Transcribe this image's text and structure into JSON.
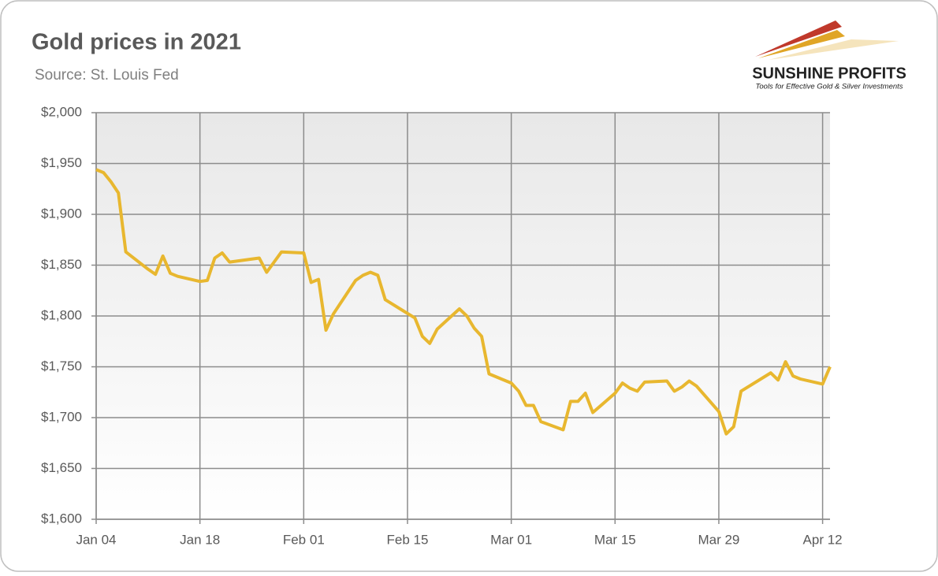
{
  "chart_data": {
    "type": "line",
    "title": "Gold prices in 2021",
    "subtitle": "Source: St. Louis Fed",
    "logo": {
      "name": "SUNSHINE PROFITS",
      "tagline": "Tools for Effective Gold & Silver Investments"
    },
    "x": [
      "Jan 04",
      "Jan 05",
      "Jan 06",
      "Jan 07",
      "Jan 08",
      "Jan 11",
      "Jan 12",
      "Jan 13",
      "Jan 14",
      "Jan 15",
      "Jan 18",
      "Jan 19",
      "Jan 20",
      "Jan 21",
      "Jan 22",
      "Jan 25",
      "Jan 26",
      "Jan 27",
      "Jan 28",
      "Jan 29",
      "Feb 01",
      "Feb 02",
      "Feb 03",
      "Feb 04",
      "Feb 05",
      "Feb 08",
      "Feb 09",
      "Feb 10",
      "Feb 11",
      "Feb 12",
      "Feb 16",
      "Feb 17",
      "Feb 18",
      "Feb 19",
      "Feb 22",
      "Feb 23",
      "Feb 24",
      "Feb 25",
      "Feb 26",
      "Mar 01",
      "Mar 02",
      "Mar 03",
      "Mar 04",
      "Mar 05",
      "Mar 08",
      "Mar 09",
      "Mar 10",
      "Mar 11",
      "Mar 12",
      "Mar 15",
      "Mar 16",
      "Mar 17",
      "Mar 18",
      "Mar 19",
      "Mar 22",
      "Mar 23",
      "Mar 24",
      "Mar 25",
      "Mar 26",
      "Mar 29",
      "Mar 30",
      "Mar 31",
      "Apr 01",
      "Apr 05",
      "Apr 06",
      "Apr 07",
      "Apr 08",
      "Apr 09",
      "Apr 12",
      "Apr 13"
    ],
    "series": [
      {
        "name": "Gold price",
        "color": "#e8b72f",
        "values": [
          1944,
          1941,
          1932,
          1921,
          1863,
          1846,
          1841,
          1859,
          1842,
          1839,
          1834,
          1835,
          1857,
          1862,
          1853,
          1856,
          1857,
          1843,
          1853,
          1863,
          1862,
          1833,
          1836,
          1786,
          1802,
          1835,
          1840,
          1843,
          1840,
          1816,
          1798,
          1780,
          1773,
          1787,
          1807,
          1800,
          1788,
          1780,
          1743,
          1734,
          1726,
          1712,
          1712,
          1696,
          1688,
          1716,
          1716,
          1724,
          1705,
          1724,
          1734,
          1729,
          1726,
          1735,
          1736,
          1726,
          1730,
          1736,
          1731,
          1706,
          1684,
          1691,
          1726,
          1744,
          1737,
          1755,
          1741,
          1738,
          1733,
          1750
        ]
      }
    ],
    "xlim": [
      "Jan 04",
      "Apr 13"
    ],
    "xticks": [
      "Jan 04",
      "Jan 18",
      "Feb 01",
      "Feb 15",
      "Mar 01",
      "Mar 15",
      "Mar 29",
      "Apr 12"
    ],
    "ylim": [
      1600,
      2000
    ],
    "yticks": [
      {
        "value": 1600,
        "label": "$1,600"
      },
      {
        "value": 1650,
        "label": "$1,650"
      },
      {
        "value": 1700,
        "label": "$1,700"
      },
      {
        "value": 1750,
        "label": "$1,750"
      },
      {
        "value": 1800,
        "label": "$1,800"
      },
      {
        "value": 1850,
        "label": "$1,850"
      },
      {
        "value": 1900,
        "label": "$1,900"
      },
      {
        "value": 1950,
        "label": "$1,950"
      },
      {
        "value": 2000,
        "label": "$2,000"
      }
    ],
    "grid": true
  }
}
